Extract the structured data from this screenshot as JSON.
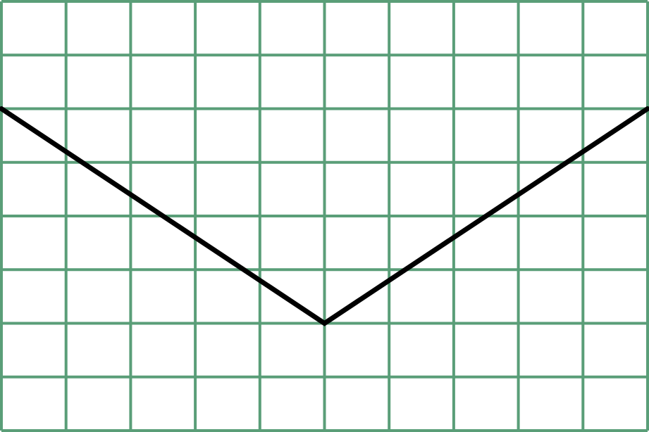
{
  "chart_data": {
    "type": "line",
    "title": "",
    "xlabel": "",
    "ylabel": "",
    "grid": true,
    "xlim": [
      -5,
      5
    ],
    "ylim": [
      -4,
      4
    ],
    "x": [
      -5,
      0,
      5
    ],
    "series": [
      {
        "values": [
          2,
          -2,
          2
        ]
      }
    ],
    "colors": {
      "grid": "#5a9e78",
      "line": "#000000",
      "background": "#ffffff"
    }
  }
}
